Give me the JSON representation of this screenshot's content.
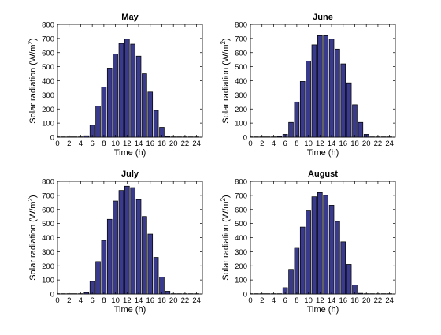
{
  "chart_data": [
    {
      "type": "bar",
      "title": "May",
      "xlabel": "Time (h)",
      "ylabel_main": "Solar radiation (W/m",
      "ylabel_sup": "2",
      "ylabel_tail": ")",
      "xlim": [
        0,
        25
      ],
      "ylim": [
        0,
        800
      ],
      "xticks": [
        "0",
        "2",
        "4",
        "6",
        "8",
        "10",
        "12",
        "14",
        "16",
        "18",
        "20",
        "22",
        "24"
      ],
      "yticks": [
        "0",
        "100",
        "200",
        "300",
        "400",
        "500",
        "600",
        "700",
        "800"
      ],
      "bar_color": "#3a3a8c",
      "x": [
        0,
        1,
        2,
        3,
        4,
        5,
        6,
        7,
        8,
        9,
        10,
        11,
        12,
        13,
        14,
        15,
        16,
        17,
        18,
        19,
        20,
        21,
        22,
        23,
        24
      ],
      "values": [
        0,
        0,
        0,
        0,
        0,
        10,
        85,
        220,
        355,
        490,
        590,
        665,
        695,
        660,
        575,
        450,
        320,
        190,
        70,
        5,
        0,
        0,
        0,
        0,
        0
      ]
    },
    {
      "type": "bar",
      "title": "June",
      "xlabel": "Time (h)",
      "ylabel_main": "Solar radiation (W/m",
      "ylabel_sup": "2",
      "ylabel_tail": ")",
      "xlim": [
        0,
        25
      ],
      "ylim": [
        0,
        800
      ],
      "xticks": [
        "0",
        "2",
        "4",
        "6",
        "8",
        "10",
        "12",
        "14",
        "16",
        "18",
        "20",
        "22",
        "24"
      ],
      "yticks": [
        "0",
        "100",
        "200",
        "300",
        "400",
        "500",
        "600",
        "700",
        "800"
      ],
      "bar_color": "#3a3a8c",
      "x": [
        0,
        1,
        2,
        3,
        4,
        5,
        6,
        7,
        8,
        9,
        10,
        11,
        12,
        13,
        14,
        15,
        16,
        17,
        18,
        19,
        20,
        21,
        22,
        23,
        24
      ],
      "values": [
        0,
        0,
        0,
        0,
        0,
        5,
        20,
        105,
        250,
        395,
        540,
        655,
        720,
        720,
        695,
        625,
        520,
        385,
        230,
        105,
        20,
        0,
        0,
        0,
        0
      ]
    },
    {
      "type": "bar",
      "title": "July",
      "xlabel": "Time (h)",
      "ylabel_main": "Solar radiation (W/m",
      "ylabel_sup": "2",
      "ylabel_tail": ")",
      "xlim": [
        0,
        25
      ],
      "ylim": [
        0,
        800
      ],
      "xticks": [
        "0",
        "2",
        "4",
        "6",
        "8",
        "10",
        "12",
        "14",
        "16",
        "18",
        "20",
        "22",
        "24"
      ],
      "yticks": [
        "0",
        "100",
        "200",
        "300",
        "400",
        "500",
        "600",
        "700",
        "800"
      ],
      "bar_color": "#3a3a8c",
      "x": [
        0,
        1,
        2,
        3,
        4,
        5,
        6,
        7,
        8,
        9,
        10,
        11,
        12,
        13,
        14,
        15,
        16,
        17,
        18,
        19,
        20,
        21,
        22,
        23,
        24
      ],
      "values": [
        0,
        0,
        0,
        0,
        0,
        10,
        90,
        230,
        380,
        530,
        660,
        735,
        765,
        755,
        670,
        550,
        425,
        260,
        120,
        20,
        0,
        0,
        0,
        0,
        0
      ]
    },
    {
      "type": "bar",
      "title": "August",
      "xlabel": "Time (h)",
      "ylabel_main": "Solar radiation (W/m",
      "ylabel_sup": "2",
      "ylabel_tail": ")",
      "xlim": [
        0,
        25
      ],
      "ylim": [
        0,
        800
      ],
      "xticks": [
        "0",
        "2",
        "4",
        "6",
        "8",
        "10",
        "12",
        "14",
        "16",
        "18",
        "20",
        "22",
        "24"
      ],
      "yticks": [
        "0",
        "100",
        "200",
        "300",
        "400",
        "500",
        "600",
        "700",
        "800"
      ],
      "bar_color": "#3a3a8c",
      "x": [
        0,
        1,
        2,
        3,
        4,
        5,
        6,
        7,
        8,
        9,
        10,
        11,
        12,
        13,
        14,
        15,
        16,
        17,
        18,
        19,
        20,
        21,
        22,
        23,
        24
      ],
      "values": [
        0,
        0,
        0,
        0,
        0,
        0,
        45,
        175,
        330,
        475,
        590,
        690,
        720,
        700,
        630,
        515,
        370,
        210,
        65,
        5,
        0,
        0,
        0,
        0,
        0
      ]
    }
  ]
}
